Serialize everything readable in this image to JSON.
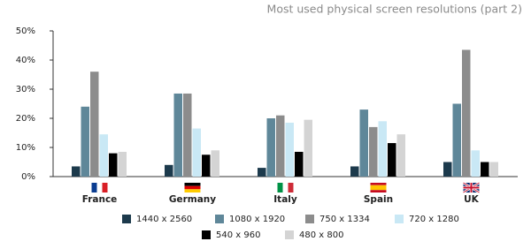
{
  "chart_data": {
    "type": "bar",
    "title": "Most used physical screen resolutions (part 2)",
    "categories": [
      "France",
      "Germany",
      "Italy",
      "Spain",
      "UK"
    ],
    "series": [
      {
        "name": "1440 x 2560",
        "color": "#1c3a4c",
        "values": [
          3.5,
          4,
          3,
          3.5,
          5
        ]
      },
      {
        "name": "1080 x 1920",
        "color": "#5f8799",
        "values": [
          24,
          28.5,
          20,
          23,
          25
        ]
      },
      {
        "name": "750 x 1334",
        "color": "#8c8c8c",
        "values": [
          36,
          28.5,
          21,
          17,
          43.5
        ]
      },
      {
        "name": "720 x 1280",
        "color": "#c9e8f5",
        "values": [
          14.5,
          16.5,
          18.5,
          19,
          9
        ]
      },
      {
        "name": "540 x 960",
        "color": "#000000",
        "values": [
          8,
          7.5,
          8.5,
          11.5,
          5
        ]
      },
      {
        "name": "480 x 800",
        "color": "#d4d4d4",
        "values": [
          8.5,
          9,
          19.5,
          14.5,
          5
        ]
      }
    ],
    "ylim": [
      0,
      50
    ],
    "yticks": [
      {
        "value": 0,
        "label": "0%"
      },
      {
        "value": 10,
        "label": "10%"
      },
      {
        "value": 20,
        "label": "20%"
      },
      {
        "value": 30,
        "label": "30%"
      },
      {
        "value": 40,
        "label": "40%"
      },
      {
        "value": 50,
        "label": "50%"
      }
    ],
    "grid": false
  }
}
